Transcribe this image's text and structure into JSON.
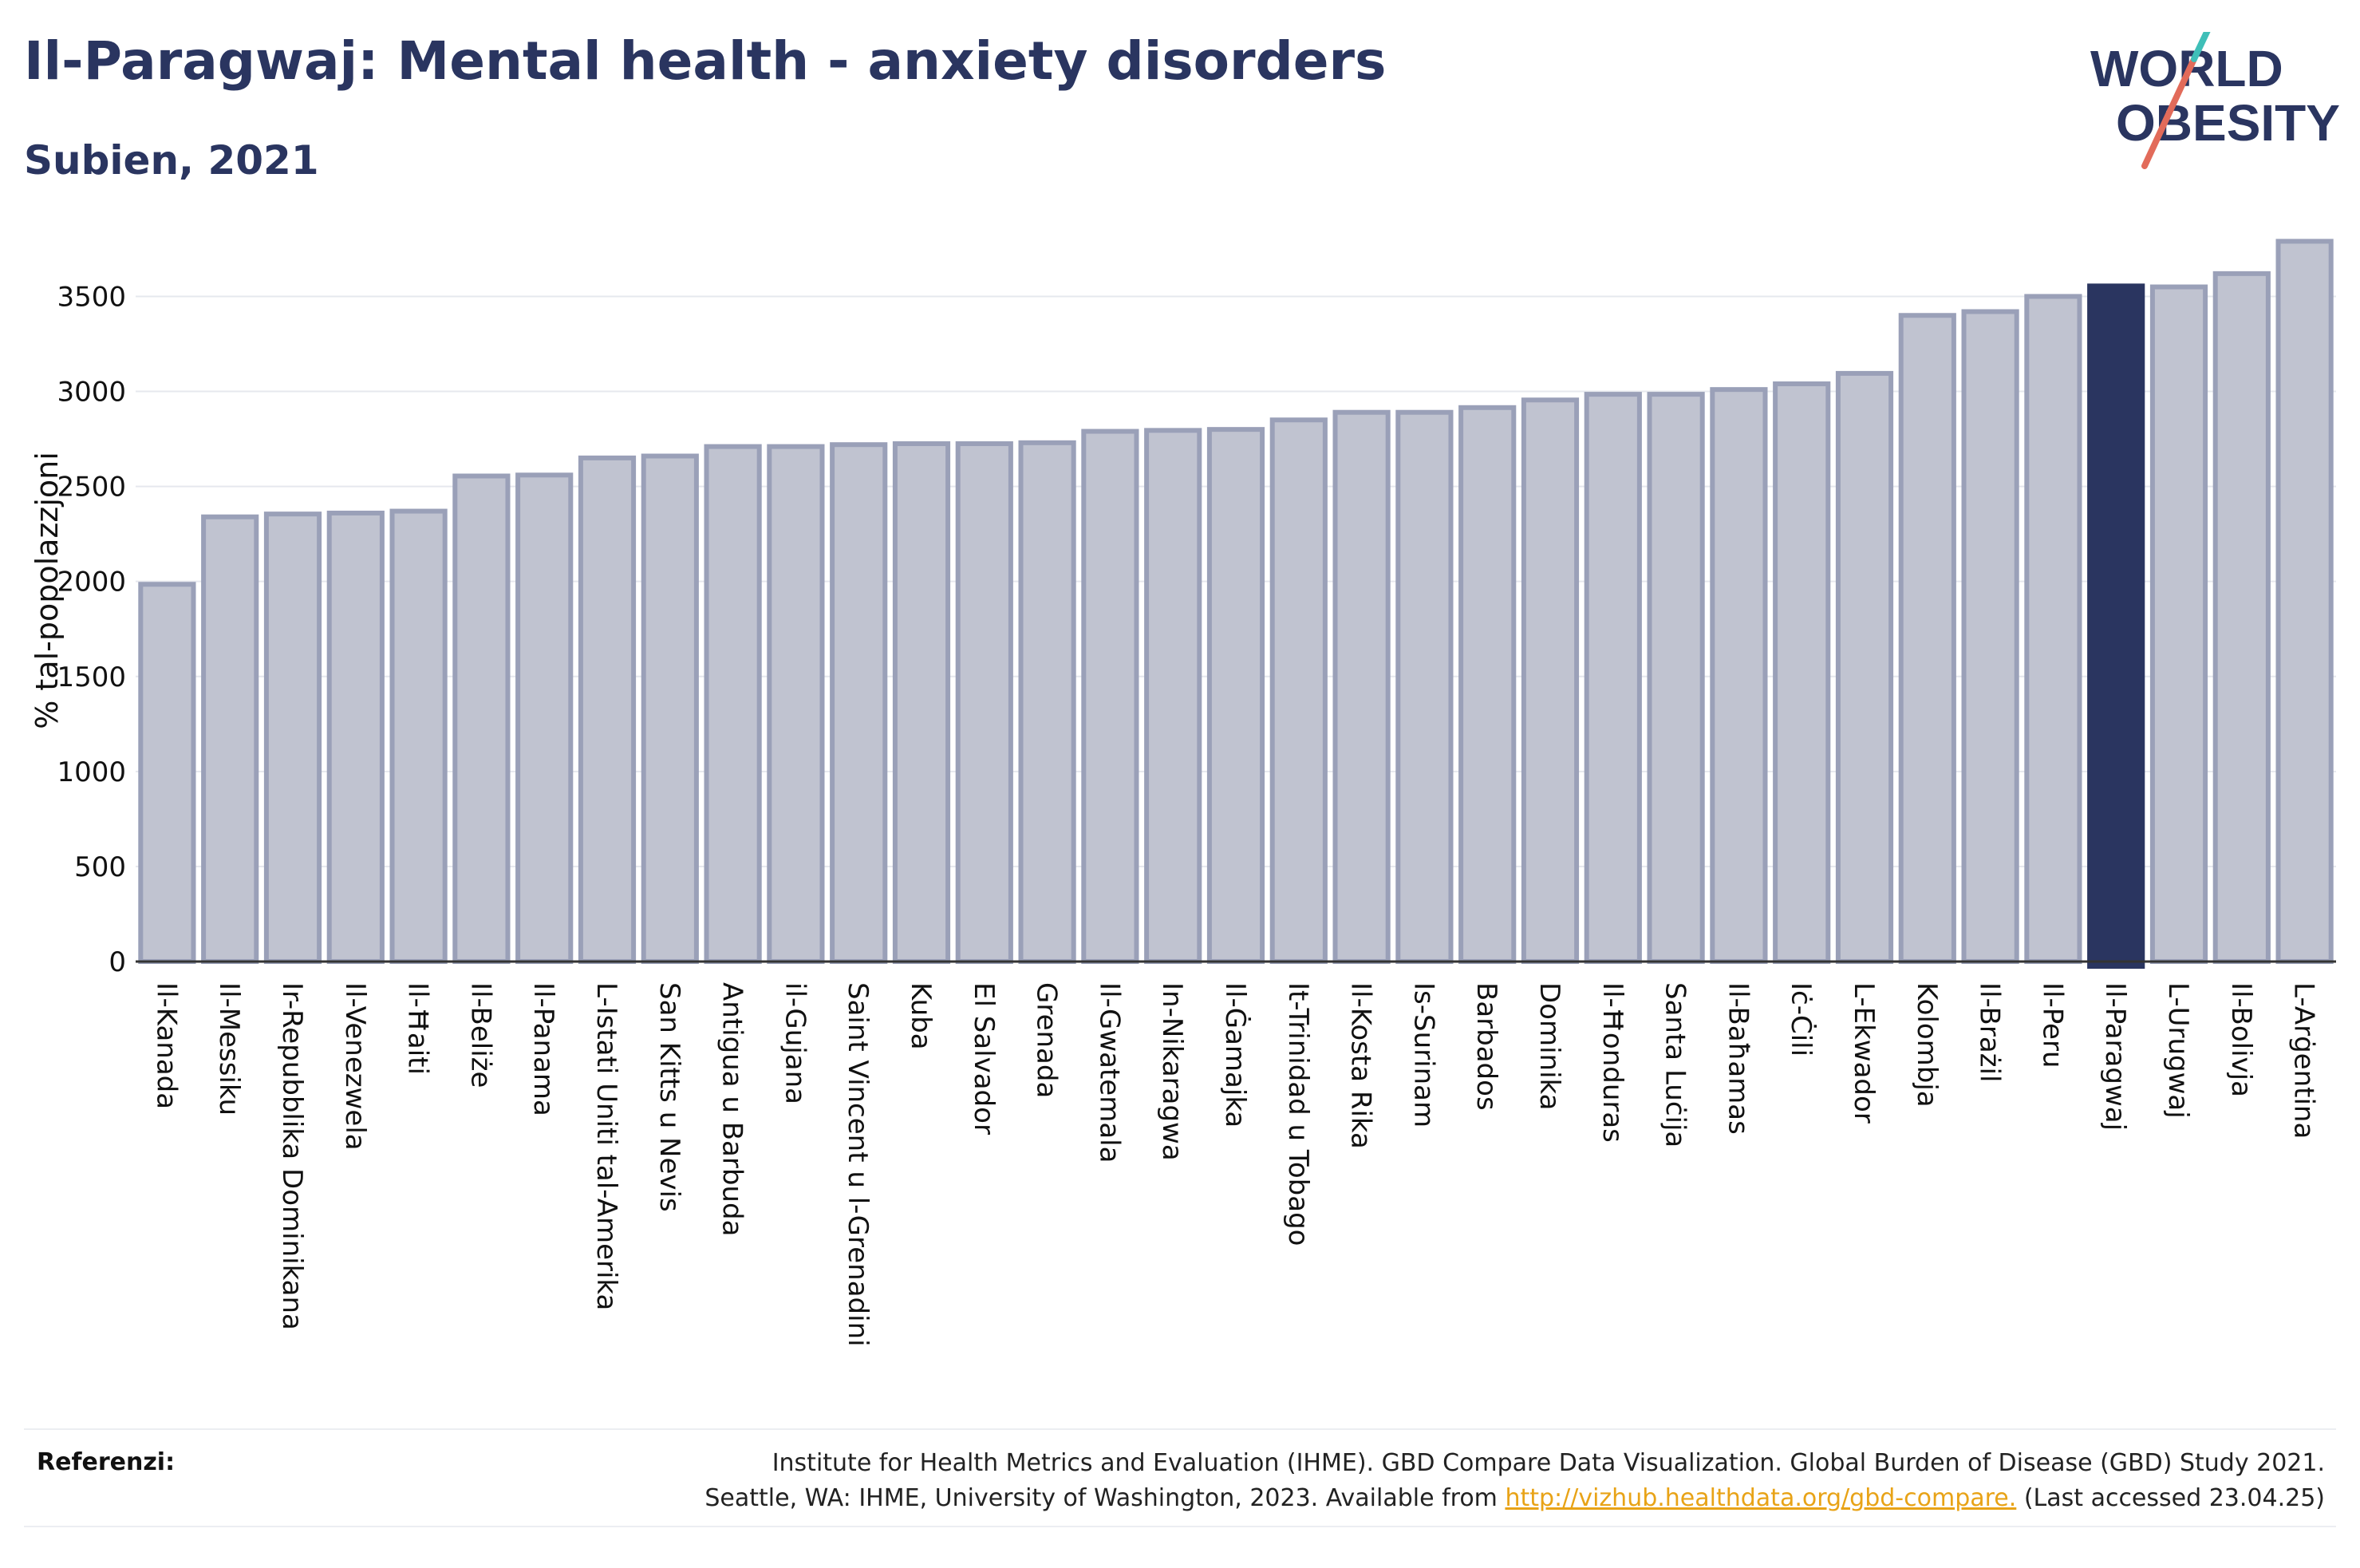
{
  "header": {
    "title": "Il-Paragwaj: Mental health - anxiety disorders",
    "subtitle": "Subien, 2021"
  },
  "logo": {
    "line1": "WORLD",
    "line2": "OBESITY"
  },
  "colors": {
    "bar": "#c0c3d0",
    "bar_stroke": "#9aa0b8",
    "highlight": "#2a3560",
    "grid": "#e6e8ee",
    "axis": "#333333"
  },
  "chart_data": {
    "type": "bar",
    "title": "Il-Paragwaj: Mental health - anxiety disorders",
    "subtitle": "Subien, 2021",
    "xlabel": "",
    "ylabel": "% tal-popolazzjoni",
    "ylim": [
      0,
      3800
    ],
    "yticks": [
      0,
      500,
      1000,
      1500,
      2000,
      2500,
      3000,
      3500
    ],
    "grid": true,
    "highlight": "Il-Paragwaj",
    "categories": [
      "Il-Kanada",
      "Il-Messiku",
      "Ir-Repubblika Dominikana",
      "Il-Venezwela",
      "Il-Ħaiti",
      "Il-Beliże",
      "Il-Panama",
      "L-Istati Uniti tal-Amerika",
      "San Kitts u Nevis",
      "Antigua u Barbuda",
      "il-Gujana",
      "Saint Vincent u l-Grenadini",
      "Kuba",
      "El Salvador",
      "Grenada",
      "Il-Gwatemala",
      "In-Nikaragwa",
      "Il-Ġamajka",
      "It-Trinidad u Tobago",
      "Il-Kosta Rika",
      "Is-Surinam",
      "Barbados",
      "Dominika",
      "Il-Ħonduras",
      "Santa Luċija",
      "Il-Baħamas",
      "Iċ-Ċili",
      "L-Ekwador",
      "Kolombja",
      "Il-Brażil",
      "Il-Peru",
      "Il-Paragwaj",
      "L-Urugwaj",
      "Il-Bolivja",
      "L-Arġentina"
    ],
    "values": [
      1985,
      2340,
      2355,
      2360,
      2370,
      2555,
      2560,
      2650,
      2660,
      2710,
      2710,
      2720,
      2725,
      2725,
      2730,
      2790,
      2795,
      2800,
      2850,
      2890,
      2890,
      2915,
      2955,
      2985,
      2985,
      3010,
      3040,
      3095,
      3400,
      3420,
      3500,
      3555,
      3550,
      3620,
      3790
    ]
  },
  "footer": {
    "ref_label": "Referenzi:",
    "ref_line1": "Institute for Health Metrics and Evaluation (IHME). GBD Compare Data Visualization. Global Burden of Disease (GBD) Study 2021.",
    "ref_line2_pre": "Seattle, WA: IHME, University of Washington, 2023. Available from ",
    "ref_link": "http://vizhub.healthdata.org/gbd-compare.",
    "ref_line2_post": " (Last accessed 23.04.25)"
  }
}
